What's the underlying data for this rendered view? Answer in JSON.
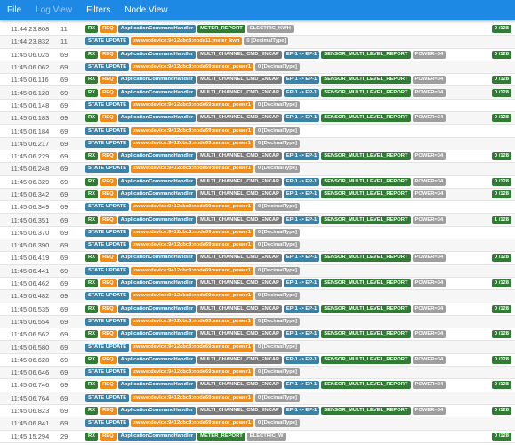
{
  "menu": {
    "file": "File",
    "log_view": "Log View",
    "filters": "Filters",
    "node_view": "Node View"
  },
  "colors": {
    "menubar": "#1e88e5",
    "rx": "#2e7d32",
    "req": "#ef8c1a",
    "handler": "#3b82a7",
    "gray": "#9e9e9e"
  },
  "rows": [
    {
      "kind": "meter",
      "ts": "11:44:23.808",
      "node": "11",
      "chips": [
        "RX",
        "REQ",
        "ApplicationCommandHandler",
        "METER_REPORT",
        "ELECTRIC_KWH"
      ],
      "badge": "0 /128"
    },
    {
      "kind": "update",
      "ts": "11:44:23.832",
      "node": "11",
      "chips": [
        "STATE UPDATE",
        "zwave:device:9412cbc8:node11:meter_kwh",
        "0 [DecimalType]"
      ],
      "badge": ""
    },
    {
      "kind": "mc",
      "ts": "11:45:06.025",
      "node": "69",
      "chips": [
        "RX",
        "REQ",
        "ApplicationCommandHandler",
        "MULTI_CHANNEL_CMD_ENCAP",
        "EP-1 -> EP-1",
        "SENSOR_MULTI_LEVEL_REPORT",
        "POWER=34"
      ],
      "badge": "0 /128"
    },
    {
      "kind": "update",
      "ts": "11:45:06.062",
      "node": "69",
      "chips": [
        "STATE UPDATE",
        "zwave:device:9412cbc8:node69:sensor_power1",
        "0 [DecimalType]"
      ],
      "badge": ""
    },
    {
      "kind": "mc",
      "ts": "11:45:06.116",
      "node": "69",
      "chips": [
        "RX",
        "REQ",
        "ApplicationCommandHandler",
        "MULTI_CHANNEL_CMD_ENCAP",
        "EP-1 -> EP-1",
        "SENSOR_MULTI_LEVEL_REPORT",
        "POWER=34"
      ],
      "badge": "0 /128"
    },
    {
      "kind": "mc",
      "ts": "11:45:06.128",
      "node": "69",
      "chips": [
        "RX",
        "REQ",
        "ApplicationCommandHandler",
        "MULTI_CHANNEL_CMD_ENCAP",
        "EP-1 -> EP-1",
        "SENSOR_MULTI_LEVEL_REPORT",
        "POWER=34"
      ],
      "badge": "0 /128"
    },
    {
      "kind": "update",
      "ts": "11:45:06.148",
      "node": "69",
      "chips": [
        "STATE UPDATE",
        "zwave:device:9412cbc8:node69:sensor_power1",
        "0 [DecimalType]"
      ],
      "badge": ""
    },
    {
      "kind": "mc",
      "ts": "11:45:06.183",
      "node": "69",
      "chips": [
        "RX",
        "REQ",
        "ApplicationCommandHandler",
        "MULTI_CHANNEL_CMD_ENCAP",
        "EP-1 -> EP-1",
        "SENSOR_MULTI_LEVEL_REPORT",
        "POWER=34"
      ],
      "badge": "0 /128"
    },
    {
      "kind": "update",
      "ts": "11:45:06.184",
      "node": "69",
      "chips": [
        "STATE UPDATE",
        "zwave:device:9412cbc8:node69:sensor_power1",
        "0 [DecimalType]"
      ],
      "badge": ""
    },
    {
      "kind": "update",
      "ts": "11:45:06.217",
      "node": "69",
      "chips": [
        "STATE UPDATE",
        "zwave:device:9412cbc8:node69:sensor_power1",
        "0 [DecimalType]"
      ],
      "badge": ""
    },
    {
      "kind": "mc",
      "ts": "11:45:06.229",
      "node": "69",
      "chips": [
        "RX",
        "REQ",
        "ApplicationCommandHandler",
        "MULTI_CHANNEL_CMD_ENCAP",
        "EP-1 -> EP-1",
        "SENSOR_MULTI_LEVEL_REPORT",
        "POWER=34"
      ],
      "badge": "0 /128"
    },
    {
      "kind": "update",
      "ts": "11:45:06.248",
      "node": "69",
      "chips": [
        "STATE UPDATE",
        "zwave:device:9412cbc8:node69:sensor_power1",
        "0 [DecimalType]"
      ],
      "badge": ""
    },
    {
      "kind": "mc",
      "ts": "11:45:06.329",
      "node": "69",
      "chips": [
        "RX",
        "REQ",
        "ApplicationCommandHandler",
        "MULTI_CHANNEL_CMD_ENCAP",
        "EP-1 -> EP-1",
        "SENSOR_MULTI_LEVEL_REPORT",
        "POWER=34"
      ],
      "badge": "0 /128"
    },
    {
      "kind": "mc",
      "ts": "11:45:06.342",
      "node": "69",
      "chips": [
        "RX",
        "REQ",
        "ApplicationCommandHandler",
        "MULTI_CHANNEL_CMD_ENCAP",
        "EP-1 -> EP-1",
        "SENSOR_MULTI_LEVEL_REPORT",
        "POWER=34"
      ],
      "badge": "0 /128"
    },
    {
      "kind": "update",
      "ts": "11:45:06.349",
      "node": "69",
      "chips": [
        "STATE UPDATE",
        "zwave:device:9412cbc8:node69:sensor_power1",
        "0 [DecimalType]"
      ],
      "badge": ""
    },
    {
      "kind": "mc",
      "ts": "11:45:06.351",
      "node": "69",
      "chips": [
        "RX",
        "REQ",
        "ApplicationCommandHandler",
        "MULTI_CHANNEL_CMD_ENCAP",
        "EP-1 -> EP-1",
        "SENSOR_MULTI_LEVEL_REPORT",
        "POWER=34"
      ],
      "badge": "1 /128"
    },
    {
      "kind": "update",
      "ts": "11:45:06.370",
      "node": "69",
      "chips": [
        "STATE UPDATE",
        "zwave:device:9412cbc8:node69:sensor_power1",
        "0 [DecimalType]"
      ],
      "badge": ""
    },
    {
      "kind": "update",
      "ts": "11:45:06.390",
      "node": "69",
      "chips": [
        "STATE UPDATE",
        "zwave:device:9412cbc8:node69:sensor_power1",
        "0 [DecimalType]"
      ],
      "badge": ""
    },
    {
      "kind": "mc",
      "ts": "11:45:06.419",
      "node": "69",
      "chips": [
        "RX",
        "REQ",
        "ApplicationCommandHandler",
        "MULTI_CHANNEL_CMD_ENCAP",
        "EP-1 -> EP-1",
        "SENSOR_MULTI_LEVEL_REPORT",
        "POWER=34"
      ],
      "badge": "0 /128"
    },
    {
      "kind": "update",
      "ts": "11:45:06.441",
      "node": "69",
      "chips": [
        "STATE UPDATE",
        "zwave:device:9412cbc8:node69:sensor_power1",
        "0 [DecimalType]"
      ],
      "badge": ""
    },
    {
      "kind": "mc",
      "ts": "11:45:06.462",
      "node": "69",
      "chips": [
        "RX",
        "REQ",
        "ApplicationCommandHandler",
        "MULTI_CHANNEL_CMD_ENCAP",
        "EP-1 -> EP-1",
        "SENSOR_MULTI_LEVEL_REPORT",
        "POWER=34"
      ],
      "badge": "0 /128"
    },
    {
      "kind": "update",
      "ts": "11:45:06.482",
      "node": "69",
      "chips": [
        "STATE UPDATE",
        "zwave:device:9412cbc8:node69:sensor_power1",
        "0 [DecimalType]"
      ],
      "badge": ""
    },
    {
      "kind": "mc",
      "ts": "11:45:06.535",
      "node": "69",
      "chips": [
        "RX",
        "REQ",
        "ApplicationCommandHandler",
        "MULTI_CHANNEL_CMD_ENCAP",
        "EP-1 -> EP-1",
        "SENSOR_MULTI_LEVEL_REPORT",
        "POWER=34"
      ],
      "badge": "0 /128"
    },
    {
      "kind": "update",
      "ts": "11:45:06.554",
      "node": "69",
      "chips": [
        "STATE UPDATE",
        "zwave:device:9412cbc8:node69:sensor_power1",
        "0 [DecimalType]"
      ],
      "badge": ""
    },
    {
      "kind": "mc",
      "ts": "11:45:06.562",
      "node": "69",
      "chips": [
        "RX",
        "REQ",
        "ApplicationCommandHandler",
        "MULTI_CHANNEL_CMD_ENCAP",
        "EP-1 -> EP-1",
        "SENSOR_MULTI_LEVEL_REPORT",
        "POWER=34"
      ],
      "badge": "0 /128"
    },
    {
      "kind": "update",
      "ts": "11:45:06.580",
      "node": "69",
      "chips": [
        "STATE UPDATE",
        "zwave:device:9412cbc8:node69:sensor_power1",
        "0 [DecimalType]"
      ],
      "badge": ""
    },
    {
      "kind": "mc",
      "ts": "11:45:06.628",
      "node": "69",
      "chips": [
        "RX",
        "REQ",
        "ApplicationCommandHandler",
        "MULTI_CHANNEL_CMD_ENCAP",
        "EP-1 -> EP-1",
        "SENSOR_MULTI_LEVEL_REPORT",
        "POWER=34"
      ],
      "badge": "0 /128"
    },
    {
      "kind": "update",
      "ts": "11:45:06.646",
      "node": "69",
      "chips": [
        "STATE UPDATE",
        "zwave:device:9412cbc8:node69:sensor_power1",
        "0 [DecimalType]"
      ],
      "badge": ""
    },
    {
      "kind": "mc",
      "ts": "11:45:06.746",
      "node": "69",
      "chips": [
        "RX",
        "REQ",
        "ApplicationCommandHandler",
        "MULTI_CHANNEL_CMD_ENCAP",
        "EP-1 -> EP-1",
        "SENSOR_MULTI_LEVEL_REPORT",
        "POWER=34"
      ],
      "badge": "0 /128"
    },
    {
      "kind": "update",
      "ts": "11:45:06.764",
      "node": "69",
      "chips": [
        "STATE UPDATE",
        "zwave:device:9412cbc8:node69:sensor_power1",
        "0 [DecimalType]"
      ],
      "badge": ""
    },
    {
      "kind": "mc",
      "ts": "11:45:06.823",
      "node": "69",
      "chips": [
        "RX",
        "REQ",
        "ApplicationCommandHandler",
        "MULTI_CHANNEL_CMD_ENCAP",
        "EP-1 -> EP-1",
        "SENSOR_MULTI_LEVEL_REPORT",
        "POWER=34"
      ],
      "badge": "0 /128"
    },
    {
      "kind": "update",
      "ts": "11:45:06.841",
      "node": "69",
      "chips": [
        "STATE UPDATE",
        "zwave:device:9412cbc8:node69:sensor_power1",
        "0 [DecimalType]"
      ],
      "badge": ""
    },
    {
      "kind": "meter",
      "ts": "11:45:15.294",
      "node": "29",
      "chips": [
        "RX",
        "REQ",
        "ApplicationCommandHandler",
        "METER_REPORT",
        "ELECTRIC_W"
      ],
      "badge": "0 /128"
    }
  ]
}
